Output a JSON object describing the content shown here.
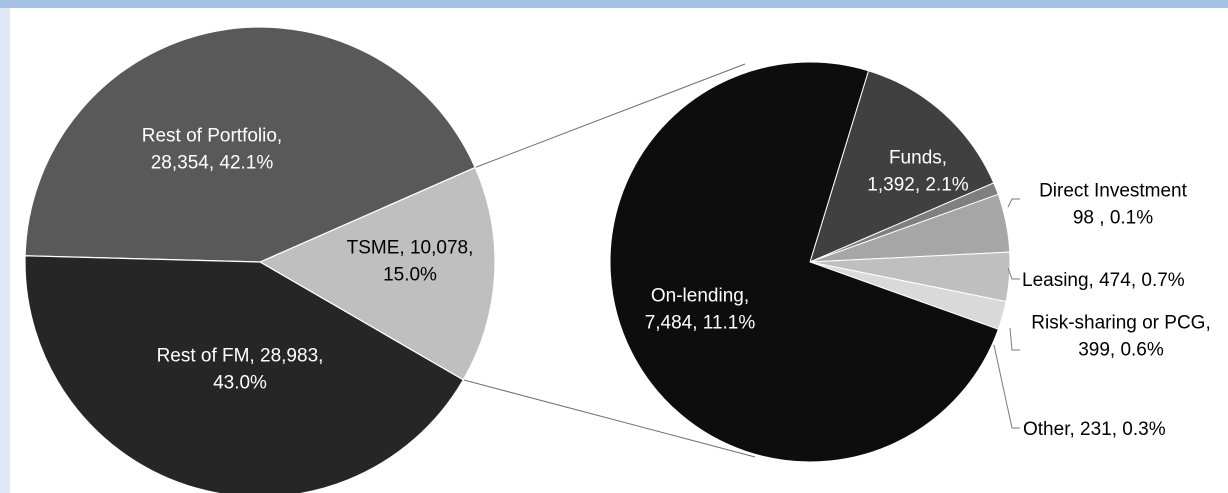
{
  "chart_data": [
    {
      "type": "pie",
      "slices": [
        {
          "label_lines": [
            "TSME,  10,078,",
            "15.0%"
          ],
          "value": 10078,
          "percent": 15.0,
          "color": "#bfbfbf",
          "label_color": "#000000"
        },
        {
          "label_lines": [
            "Rest of FM, 28,983,",
            "43.0%"
          ],
          "value": 28983,
          "percent": 43.0,
          "color": "#595959",
          "label_color": "#ffffff"
        },
        {
          "label_lines": [
            "Rest of Portfolio,",
            "28,354, 42.1%"
          ],
          "value": 28354,
          "percent": 42.1,
          "color": "#262626",
          "label_color": "#ffffff"
        }
      ]
    },
    {
      "type": "pie",
      "slices": [
        {
          "label_lines": [
            "Funds,",
            "1,392, 2.1%"
          ],
          "value": 1392,
          "percent": 2.1,
          "color": "#404040",
          "label_color": "#ffffff"
        },
        {
          "label_lines": [
            "Direct Investment",
            "98 , 0.1%"
          ],
          "value": 98,
          "percent": 0.1,
          "color": "#7f7f7f",
          "label_color": "#000000"
        },
        {
          "label_lines": [
            "Leasing, 474, 0.7%"
          ],
          "value": 474,
          "percent": 0.7,
          "color": "#a6a6a6",
          "label_color": "#000000"
        },
        {
          "label_lines": [
            "Risk-sharing or PCG,",
            "399, 0.6%"
          ],
          "value": 399,
          "percent": 0.6,
          "color": "#bfbfbf",
          "label_color": "#000000"
        },
        {
          "label_lines": [
            "Other, 231, 0.3%"
          ],
          "value": 231,
          "percent": 0.3,
          "color": "#d9d9d9",
          "label_color": "#000000"
        },
        {
          "label_lines": [
            "On-lending,",
            "7,484, 11.1%"
          ],
          "value": 7484,
          "percent": 11.1,
          "color": "#0d0d0d",
          "label_color": "#ffffff"
        }
      ]
    }
  ]
}
